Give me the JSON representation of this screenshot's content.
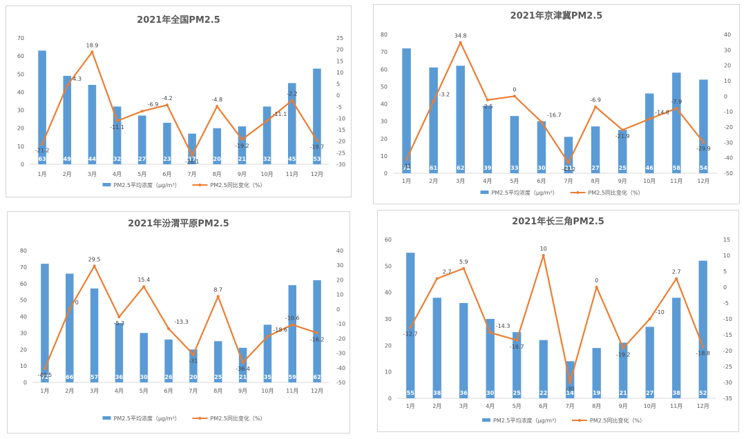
{
  "colors": {
    "bar": "#5b9bd5",
    "line": "#ed7d31",
    "text": "#595959",
    "grid": "#d9d9d9"
  },
  "chart_data": [
    {
      "type": "bar",
      "title": "2021年全国PM2.5",
      "categories": [
        "1月",
        "2月",
        "3月",
        "4月",
        "5月",
        "6月",
        "7月",
        "8月",
        "9月",
        "10月",
        "11月",
        "12月"
      ],
      "series": [
        {
          "name": "PM2.5平均浓度（μg/m³）",
          "type": "bar",
          "axis": "left",
          "values": [
            63,
            49,
            44,
            32,
            27,
            23,
            17,
            20,
            21,
            32,
            45,
            53
          ]
        },
        {
          "name": "PM2.5同比变化（%）",
          "type": "line",
          "axis": "right",
          "values": [
            -21.2,
            4.3,
            18.9,
            -11.1,
            -6.9,
            -4.2,
            -26.1,
            -4.8,
            -19.2,
            -11.1,
            -2.2,
            -19.7
          ]
        }
      ],
      "ylim_left": [
        0,
        70
      ],
      "yticks_left": [
        0,
        10,
        20,
        30,
        40,
        50,
        60,
        70
      ],
      "ylim_right": [
        -30,
        25
      ],
      "yticks_right": [
        -30,
        -25,
        -20,
        -15,
        -10,
        -5,
        0,
        5,
        10,
        15,
        20,
        25
      ],
      "legend": "bottom"
    },
    {
      "type": "bar",
      "title": "2021年京津冀PM2.5",
      "categories": [
        "1月",
        "2月",
        "3月",
        "4月",
        "5月",
        "6月",
        "7月",
        "8月",
        "9月",
        "10月",
        "11月",
        "12月"
      ],
      "series": [
        {
          "name": "PM2.5平均浓度（μg/m³）",
          "type": "bar",
          "axis": "left",
          "values": [
            72,
            61,
            62,
            39,
            33,
            30,
            21,
            27,
            25,
            46,
            58,
            54
          ]
        },
        {
          "name": "PM2.5同比变化（%）",
          "type": "line",
          "axis": "right",
          "values": [
            -41,
            -3.2,
            34.8,
            -2.5,
            0,
            -16.7,
            -43.2,
            -6.9,
            -21.9,
            -14.8,
            -7.9,
            -29.9
          ]
        }
      ],
      "ylim_left": [
        0,
        80
      ],
      "yticks_left": [
        0,
        10,
        20,
        30,
        40,
        50,
        60,
        70,
        80
      ],
      "ylim_right": [
        -50,
        40
      ],
      "yticks_right": [
        -50,
        -40,
        -30,
        -20,
        -10,
        0,
        10,
        20,
        30,
        40
      ],
      "legend": "bottom"
    },
    {
      "type": "bar",
      "title": "2021年汾渭平原PM2.5",
      "categories": [
        "1月",
        "2月",
        "3月",
        "4月",
        "5月",
        "6月",
        "7月",
        "8月",
        "9月",
        "10月",
        "11月",
        "12月"
      ],
      "series": [
        {
          "name": "PM2.5平均浓度（μg/m³）",
          "type": "bar",
          "axis": "left",
          "values": [
            72,
            66,
            57,
            36,
            30,
            26,
            20,
            25,
            21,
            35,
            59,
            62
          ]
        },
        {
          "name": "PM2.5同比变化（%）",
          "type": "line",
          "axis": "right",
          "values": [
            -40.5,
            0,
            29.5,
            -5.3,
            15.4,
            -13.3,
            -31,
            8.7,
            -36.4,
            -18.6,
            -10.6,
            -16.2
          ]
        }
      ],
      "ylim_left": [
        0,
        80
      ],
      "yticks_left": [
        0,
        10,
        20,
        30,
        40,
        50,
        60,
        70,
        80
      ],
      "ylim_right": [
        -50,
        40
      ],
      "yticks_right": [
        -50,
        -40,
        -30,
        -20,
        -10,
        0,
        10,
        20,
        30,
        40
      ],
      "legend": "bottom"
    },
    {
      "type": "bar",
      "title": "2021年长三角PM2.5",
      "categories": [
        "1月",
        "2月",
        "3月",
        "4月",
        "5月",
        "6月",
        "7月",
        "8月",
        "9月",
        "10月",
        "11月",
        "12月"
      ],
      "series": [
        {
          "name": "PM2.5平均浓度（μg/m³）",
          "type": "bar",
          "axis": "left",
          "values": [
            55,
            38,
            36,
            30,
            25,
            22,
            14,
            19,
            21,
            27,
            38,
            52
          ]
        },
        {
          "name": "PM2.5同比变化（%）",
          "type": "line",
          "axis": "right",
          "values": [
            -12.7,
            2.7,
            5.9,
            -14.3,
            -16.7,
            10,
            -30,
            0,
            -19.2,
            -10,
            2.7,
            -18.8
          ]
        }
      ],
      "ylim_left": [
        0,
        60
      ],
      "yticks_left": [
        0,
        10,
        20,
        30,
        40,
        50,
        60
      ],
      "ylim_right": [
        -35,
        15
      ],
      "yticks_right": [
        -35,
        -30,
        -25,
        -20,
        -15,
        -10,
        -5,
        0,
        5,
        10,
        15
      ],
      "legend": "bottom"
    }
  ]
}
